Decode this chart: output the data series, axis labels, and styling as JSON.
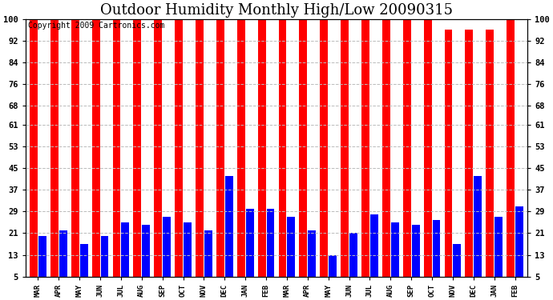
{
  "title": "Outdoor Humidity Monthly High/Low 20090315",
  "copyright": "Copyright 2009 Cartronics.com",
  "months": [
    "MAR",
    "APR",
    "MAY",
    "JUN",
    "JUL",
    "AUG",
    "SEP",
    "OCT",
    "NOV",
    "DEC",
    "JAN",
    "FEB",
    "MAR",
    "APR",
    "MAY",
    "JUN",
    "JUL",
    "AUG",
    "SEP",
    "OCT",
    "NOV",
    "DEC",
    "JAN",
    "FEB"
  ],
  "highs": [
    100,
    100,
    100,
    100,
    100,
    100,
    100,
    100,
    100,
    100,
    100,
    100,
    100,
    100,
    100,
    100,
    100,
    100,
    100,
    100,
    96,
    96,
    96,
    100
  ],
  "lows": [
    20,
    22,
    17,
    20,
    25,
    24,
    27,
    25,
    22,
    42,
    30,
    30,
    27,
    22,
    13,
    21,
    28,
    25,
    24,
    26,
    17,
    42,
    27,
    31
  ],
  "high_color": "#ff0000",
  "low_color": "#0000ff",
  "bg_color": "#ffffff",
  "plot_bg": "#ffffff",
  "grid_color": "#bbbbbb",
  "yticks": [
    5,
    13,
    21,
    29,
    37,
    45,
    53,
    61,
    68,
    76,
    84,
    92,
    100
  ],
  "ymin": 5,
  "ymax": 100,
  "title_fontsize": 13,
  "copyright_fontsize": 7
}
